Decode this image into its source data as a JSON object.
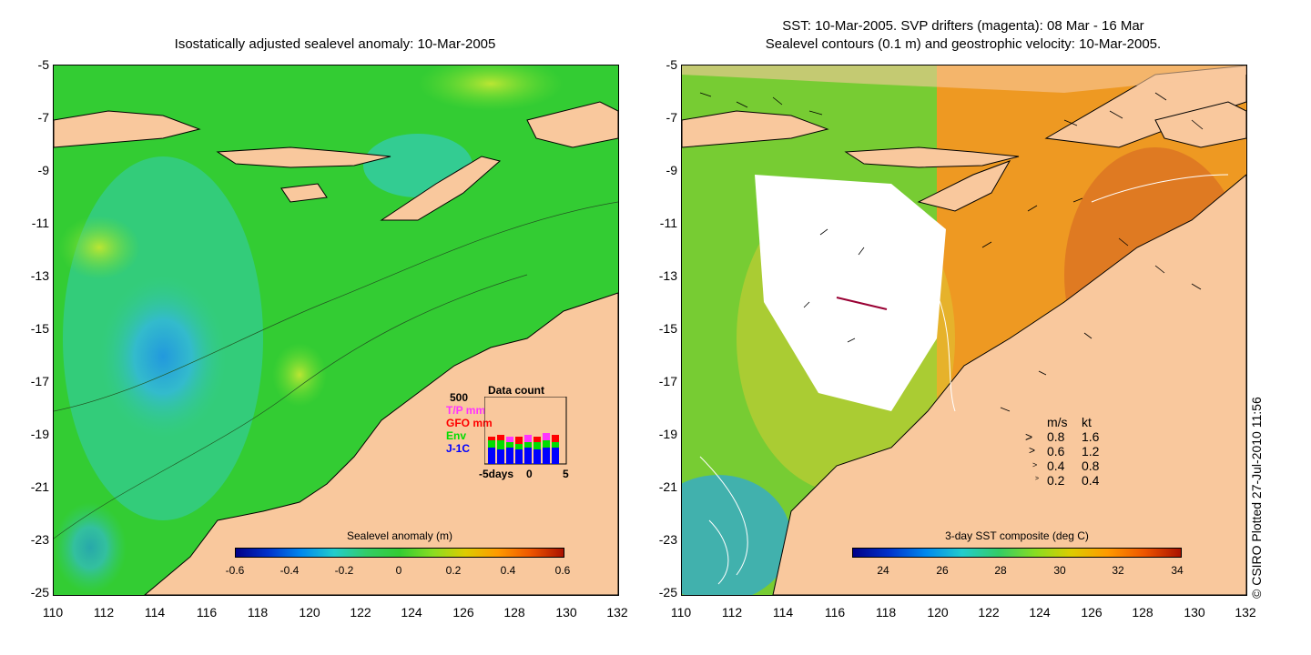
{
  "left_panel": {
    "title": "Isostatically adjusted sealevel anomaly: 10-Mar-2005",
    "y_ticks": [
      "-5",
      "-7",
      "-9",
      "-11",
      "-13",
      "-15",
      "-17",
      "-19",
      "-21",
      "-23",
      "-25"
    ],
    "x_ticks": [
      "110",
      "112",
      "114",
      "116",
      "118",
      "120",
      "122",
      "124",
      "126",
      "128",
      "130",
      "132"
    ],
    "colorbar": {
      "title": "Sealevel anomaly (m)",
      "ticks": [
        "-0.6",
        "-0.4",
        "-0.2",
        "0",
        "0.2",
        "0.4",
        "0.6"
      ]
    },
    "inset": {
      "title": "Data count",
      "max_label": "500",
      "series": [
        {
          "name": "T/P mm",
          "color": "#ff33ff"
        },
        {
          "name": "GFO mm",
          "color": "#ff0000"
        },
        {
          "name": "Env",
          "color": "#00dd00"
        },
        {
          "name": "J-1C",
          "color": "#0000ff"
        }
      ],
      "axis_left": "-5days",
      "axis_mid": "0",
      "axis_right": "5"
    }
  },
  "right_panel": {
    "title_line1": "SST: 10-Mar-2005. SVP drifters (magenta): 08 Mar - 16 Mar",
    "title_line2": "Sealevel contours (0.1 m) and geostrophic velocity: 10-Mar-2005.",
    "y_ticks": [
      "-5",
      "-7",
      "-9",
      "-11",
      "-13",
      "-15",
      "-17",
      "-19",
      "-21",
      "-23",
      "-25"
    ],
    "x_ticks": [
      "110",
      "112",
      "114",
      "116",
      "118",
      "120",
      "122",
      "124",
      "126",
      "128",
      "130",
      "132"
    ],
    "colorbar": {
      "title": "3-day SST composite (deg C)",
      "ticks": [
        "24",
        "26",
        "28",
        "30",
        "32",
        "34"
      ]
    },
    "speed_legend": {
      "header_ms": "m/s",
      "header_kt": "kt",
      "rows": [
        {
          "ms": "0.8",
          "kt": "1.6"
        },
        {
          "ms": "0.6",
          "kt": "1.2"
        },
        {
          "ms": "0.4",
          "kt": "0.8"
        },
        {
          "ms": "0.2",
          "kt": "0.4"
        }
      ]
    }
  },
  "credit": "© CSIRO Plotted 27-Jul-2010 11:56",
  "colors": {
    "land": "#f9c89d",
    "sea_main": "#33cc33",
    "coast": "#000000"
  }
}
